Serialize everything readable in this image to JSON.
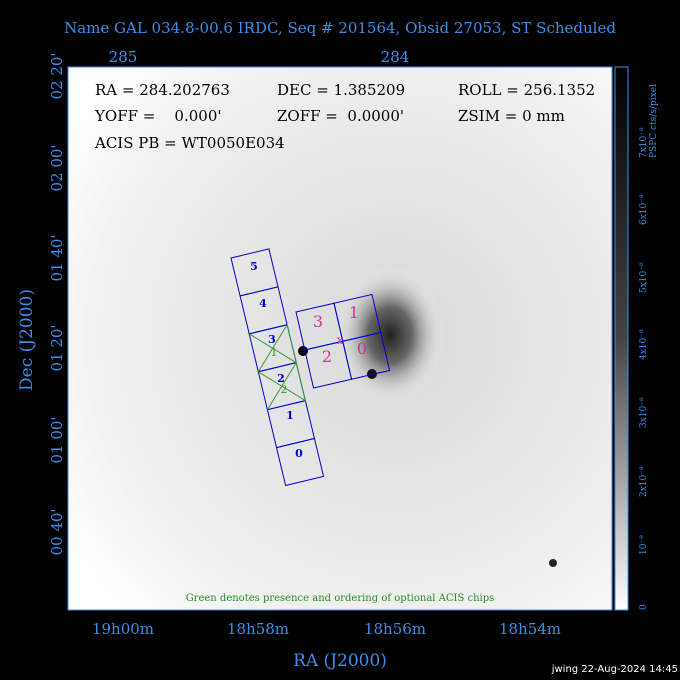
{
  "header": {
    "title": "Name GAL 034.8-00.6 IRDC, Seq # 201564, Obsid 27053, ST Scheduled"
  },
  "info": {
    "ra": "RA = 284.202763",
    "dec": "DEC = 1.385209",
    "roll": "ROLL = 256.1352",
    "yoff": "YOFF =    0.000'",
    "zoff": "ZOFF =  0.0000'",
    "zsim": "ZSIM = 0 mm",
    "pb": "ACIS PB = WT0050E034"
  },
  "top_axis": {
    "labels": [
      "285",
      "284"
    ]
  },
  "bottom_axis": {
    "title": "RA (J2000)",
    "labels": [
      "19h00m",
      "18h58m",
      "18h56m",
      "18h54m"
    ]
  },
  "left_axis": {
    "title": "Dec (J2000)",
    "labels": [
      "02 20'",
      "02 00'",
      "01 40'",
      "01 20'",
      "01 00'",
      "00 40'"
    ]
  },
  "colorbar": {
    "title": "PSPC cts/s/pixel",
    "labels": [
      "0",
      "10⁻⁸",
      "2x10⁻⁸",
      "3x10⁻⁸",
      "4x10⁻⁸",
      "5x10⁻⁸",
      "6x10⁻⁸",
      "7x10⁻⁸"
    ]
  },
  "chips": {
    "s_array": [
      "5",
      "4",
      "3",
      "2",
      "1",
      "0"
    ],
    "optional": [
      "1",
      "2"
    ],
    "i_array": [
      "3",
      "1",
      "2",
      "0"
    ]
  },
  "footer": {
    "note": "Green denotes presence and ordering of optional ACIS chips",
    "stamp": "jwing 22-Aug-2024 14:45"
  }
}
